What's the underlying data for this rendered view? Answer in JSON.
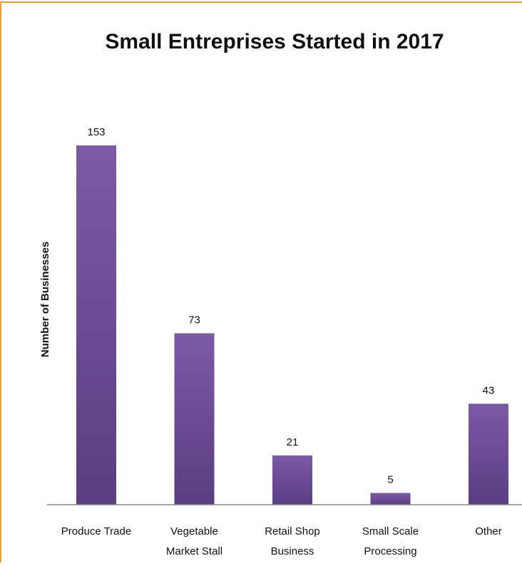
{
  "chart_data": {
    "type": "bar",
    "title": "Small Entreprises Started in 2017",
    "xlabel": "",
    "ylabel": "Number of Businesses",
    "categories": [
      [
        "Produce Trade"
      ],
      [
        "Vegetable",
        "Market Stall"
      ],
      [
        "Retail Shop",
        "Business"
      ],
      [
        "Small Scale",
        "Processing"
      ],
      [
        "Other"
      ]
    ],
    "values": [
      153,
      73,
      21,
      5,
      43
    ],
    "ylim": [
      0,
      160
    ],
    "grid": false,
    "legend": "none",
    "colors": {
      "bar_top": "#7b5aa6",
      "bar_bottom": "#5a3d82",
      "frame": "#f0a030",
      "axis": "#888888",
      "text": "#111111"
    }
  }
}
